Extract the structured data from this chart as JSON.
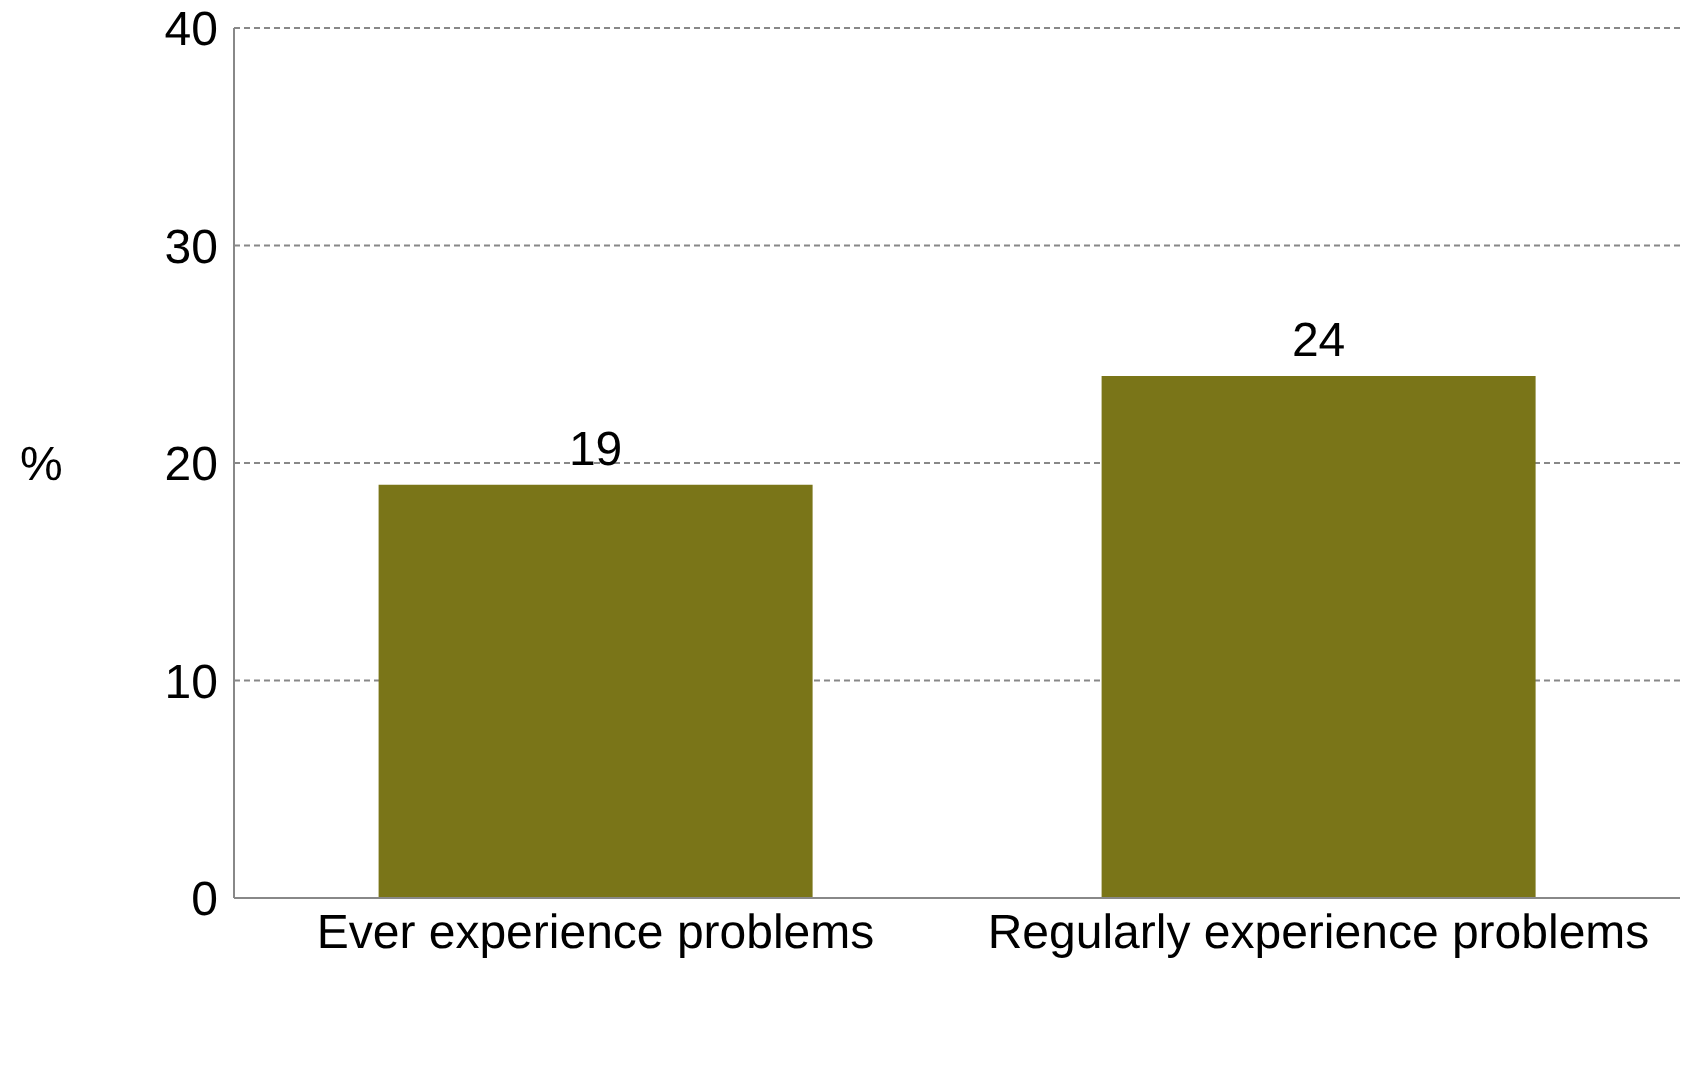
{
  "chart_data": {
    "type": "bar",
    "ylabel": "%",
    "categories": [
      "Ever experience problems",
      "Regularly experience problems"
    ],
    "values": [
      19,
      24
    ],
    "color": "#7a7518",
    "ylim": [
      0,
      40
    ],
    "yticks": [
      0,
      10,
      20,
      30,
      40
    ],
    "grid": "y",
    "data_labels": true,
    "legend": false
  }
}
